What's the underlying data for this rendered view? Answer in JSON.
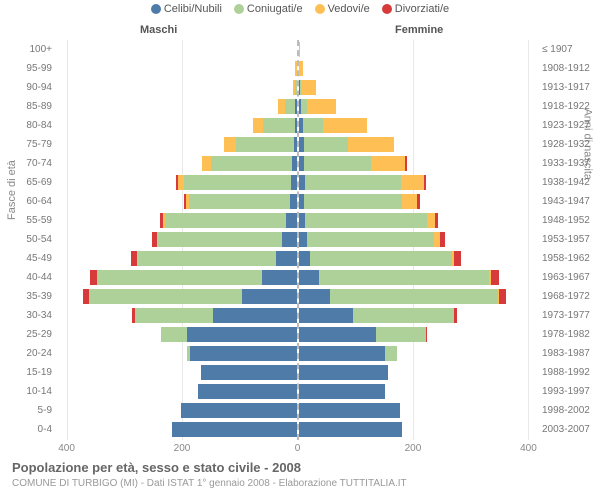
{
  "legend": [
    {
      "label": "Celibi/Nubili",
      "color": "#4f7ba8"
    },
    {
      "label": "Coniugati/e",
      "color": "#aed099"
    },
    {
      "label": "Vedovi/e",
      "color": "#fec055"
    },
    {
      "label": "Divorziati/e",
      "color": "#d63a3a"
    }
  ],
  "headers": {
    "male": "Maschi",
    "female": "Femmine"
  },
  "y_left_title": "Fasce di età",
  "y_right_title": "Anni di nascita",
  "title": "Popolazione per età, sesso e stato civile - 2008",
  "subtitle": "COMUNE DI TURBIGO (MI) - Dati ISTAT 1° gennaio 2008 - Elaborazione TUTTITALIA.IT",
  "x_ticks": [
    -400,
    -200,
    0,
    200,
    400
  ],
  "x_max": 420,
  "colors": {
    "single": "#4f7ba8",
    "married": "#aed099",
    "widowed": "#fec055",
    "divorced": "#d63a3a",
    "grid": "#e8e8e8",
    "center": "#bbbbbb",
    "tick_text": "#888888",
    "label_text": "#777777"
  },
  "rows": [
    {
      "age": "100+",
      "year": "≤ 1907",
      "m": {
        "s": 0,
        "c": 0,
        "v": 0,
        "d": 0
      },
      "f": {
        "s": 0,
        "c": 0,
        "v": 2,
        "d": 0
      }
    },
    {
      "age": "95-99",
      "year": "1908-1912",
      "m": {
        "s": 0,
        "c": 0,
        "v": 2,
        "d": 0
      },
      "f": {
        "s": 0,
        "c": 0,
        "v": 8,
        "d": 0
      }
    },
    {
      "age": "90-94",
      "year": "1913-1917",
      "m": {
        "s": 0,
        "c": 3,
        "v": 3,
        "d": 0
      },
      "f": {
        "s": 2,
        "c": 3,
        "v": 25,
        "d": 0
      }
    },
    {
      "age": "85-89",
      "year": "1918-1922",
      "m": {
        "s": 2,
        "c": 18,
        "v": 12,
        "d": 0
      },
      "f": {
        "s": 5,
        "c": 10,
        "v": 50,
        "d": 0
      }
    },
    {
      "age": "80-84",
      "year": "1923-1927",
      "m": {
        "s": 3,
        "c": 55,
        "v": 18,
        "d": 0
      },
      "f": {
        "s": 8,
        "c": 35,
        "v": 75,
        "d": 0
      }
    },
    {
      "age": "75-79",
      "year": "1928-1932",
      "m": {
        "s": 5,
        "c": 100,
        "v": 20,
        "d": 0
      },
      "f": {
        "s": 10,
        "c": 75,
        "v": 80,
        "d": 0
      }
    },
    {
      "age": "70-74",
      "year": "1933-1937",
      "m": {
        "s": 8,
        "c": 140,
        "v": 15,
        "d": 0
      },
      "f": {
        "s": 10,
        "c": 115,
        "v": 60,
        "d": 3
      }
    },
    {
      "age": "65-69",
      "year": "1938-1942",
      "m": {
        "s": 10,
        "c": 185,
        "v": 10,
        "d": 3
      },
      "f": {
        "s": 12,
        "c": 165,
        "v": 40,
        "d": 3
      }
    },
    {
      "age": "60-64",
      "year": "1943-1947",
      "m": {
        "s": 12,
        "c": 175,
        "v": 5,
        "d": 3
      },
      "f": {
        "s": 10,
        "c": 170,
        "v": 25,
        "d": 5
      }
    },
    {
      "age": "55-59",
      "year": "1948-1952",
      "m": {
        "s": 18,
        "c": 210,
        "v": 3,
        "d": 5
      },
      "f": {
        "s": 12,
        "c": 210,
        "v": 15,
        "d": 5
      }
    },
    {
      "age": "50-54",
      "year": "1953-1957",
      "m": {
        "s": 25,
        "c": 215,
        "v": 2,
        "d": 8
      },
      "f": {
        "s": 15,
        "c": 220,
        "v": 10,
        "d": 8
      }
    },
    {
      "age": "45-49",
      "year": "1958-1962",
      "m": {
        "s": 35,
        "c": 240,
        "v": 2,
        "d": 10
      },
      "f": {
        "s": 20,
        "c": 245,
        "v": 5,
        "d": 12
      }
    },
    {
      "age": "40-44",
      "year": "1963-1967",
      "m": {
        "s": 60,
        "c": 285,
        "v": 0,
        "d": 12
      },
      "f": {
        "s": 35,
        "c": 295,
        "v": 3,
        "d": 15
      }
    },
    {
      "age": "35-39",
      "year": "1968-1972",
      "m": {
        "s": 95,
        "c": 265,
        "v": 0,
        "d": 10
      },
      "f": {
        "s": 55,
        "c": 290,
        "v": 2,
        "d": 12
      }
    },
    {
      "age": "30-34",
      "year": "1973-1977",
      "m": {
        "s": 145,
        "c": 135,
        "v": 0,
        "d": 5
      },
      "f": {
        "s": 95,
        "c": 175,
        "v": 0,
        "d": 5
      }
    },
    {
      "age": "25-29",
      "year": "1978-1982",
      "m": {
        "s": 190,
        "c": 45,
        "v": 0,
        "d": 0
      },
      "f": {
        "s": 135,
        "c": 85,
        "v": 0,
        "d": 2
      }
    },
    {
      "age": "20-24",
      "year": "1983-1987",
      "m": {
        "s": 185,
        "c": 5,
        "v": 0,
        "d": 0
      },
      "f": {
        "s": 150,
        "c": 20,
        "v": 0,
        "d": 0
      }
    },
    {
      "age": "15-19",
      "year": "1988-1992",
      "m": {
        "s": 165,
        "c": 0,
        "v": 0,
        "d": 0
      },
      "f": {
        "s": 155,
        "c": 0,
        "v": 0,
        "d": 0
      }
    },
    {
      "age": "10-14",
      "year": "1993-1997",
      "m": {
        "s": 170,
        "c": 0,
        "v": 0,
        "d": 0
      },
      "f": {
        "s": 150,
        "c": 0,
        "v": 0,
        "d": 0
      }
    },
    {
      "age": "5-9",
      "year": "1998-2002",
      "m": {
        "s": 200,
        "c": 0,
        "v": 0,
        "d": 0
      },
      "f": {
        "s": 175,
        "c": 0,
        "v": 0,
        "d": 0
      }
    },
    {
      "age": "0-4",
      "year": "2003-2007",
      "m": {
        "s": 215,
        "c": 0,
        "v": 0,
        "d": 0
      },
      "f": {
        "s": 180,
        "c": 0,
        "v": 0,
        "d": 0
      }
    }
  ]
}
